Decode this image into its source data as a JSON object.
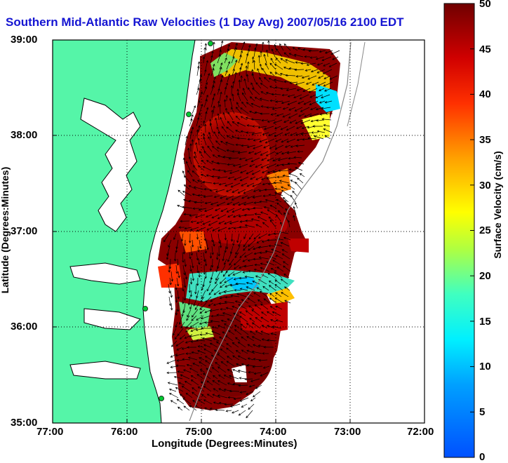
{
  "title": "Southern Mid-Atlantic Raw Velocities (1 Day Avg) 2007/05/16 2100 EDT",
  "x_axis": {
    "label": "Longitude (Degrees:Minutes)",
    "ticks": [
      "77:00",
      "76:00",
      "75:00",
      "74:00",
      "73:00",
      "72:00"
    ]
  },
  "y_axis": {
    "label": "Latitude (Degrees:Minutes)",
    "ticks": [
      "39:00",
      "38:00",
      "37:00",
      "36:00",
      "35:00"
    ]
  },
  "colorbar": {
    "label": "Surface Velocity (cm/s)",
    "ticks": [
      "50",
      "45",
      "40",
      "35",
      "30",
      "25",
      "20",
      "15",
      "10",
      "5",
      "0"
    ],
    "range": [
      0,
      50
    ]
  },
  "colors": {
    "land": "#55f5a8",
    "water": "#ffffff",
    "title": "#1414d2",
    "station": "#00c832"
  }
}
